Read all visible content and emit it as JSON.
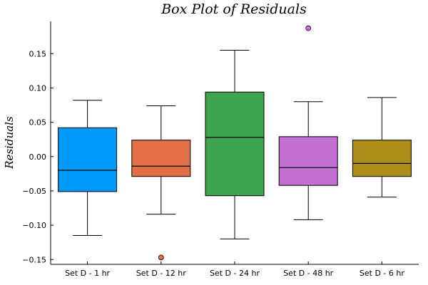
{
  "chart_data": {
    "type": "box",
    "title": "Box Plot of Residuals",
    "xlabel": "",
    "ylabel": "Residuals",
    "ylim": [
      -0.157,
      0.197
    ],
    "yticks": [
      -0.15,
      -0.1,
      -0.05,
      0.0,
      0.05,
      0.1,
      0.15
    ],
    "ytick_labels": [
      "−0.15",
      "−0.10",
      "−0.05",
      "0.00",
      "0.05",
      "0.10",
      "0.15"
    ],
    "grid": false,
    "legend": "none",
    "categories": [
      "Set D - 1 hr",
      "Set D - 12 hr",
      "Set D - 24 hr",
      "Set D - 48 hr",
      "Set D - 6 hr"
    ],
    "series": [
      {
        "category": "Set D - 1 hr",
        "color": "#009AFA",
        "whisker_low": -0.115,
        "q1": -0.051,
        "median": -0.02,
        "q3": 0.042,
        "whisker_high": 0.082,
        "outliers": []
      },
      {
        "category": "Set D - 12 hr",
        "color": "#E26F46",
        "whisker_low": -0.084,
        "q1": -0.029,
        "median": -0.014,
        "q3": 0.024,
        "whisker_high": 0.074,
        "outliers": [
          -0.147
        ]
      },
      {
        "category": "Set D - 24 hr",
        "color": "#3EA44E",
        "whisker_low": -0.12,
        "q1": -0.057,
        "median": 0.028,
        "q3": 0.094,
        "whisker_high": 0.155,
        "outliers": []
      },
      {
        "category": "Set D - 48 hr",
        "color": "#C271D2",
        "whisker_low": -0.092,
        "q1": -0.042,
        "median": -0.016,
        "q3": 0.029,
        "whisker_high": 0.08,
        "outliers": [
          0.187
        ]
      },
      {
        "category": "Set D - 6 hr",
        "color": "#AC8D18",
        "whisker_low": -0.059,
        "q1": -0.029,
        "median": -0.01,
        "q3": 0.024,
        "whisker_high": 0.086,
        "outliers": []
      }
    ]
  }
}
